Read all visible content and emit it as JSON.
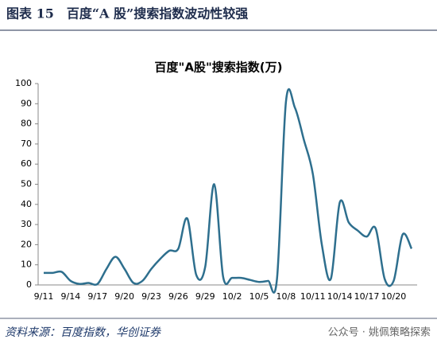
{
  "header": {
    "title": "图表 15　百度“A 股”搜索指数波动性较强"
  },
  "chart_data": {
    "type": "line",
    "title": "百度\"A股\"搜索指数(万)",
    "categories": [
      "9/11",
      null,
      null,
      "9/14",
      null,
      null,
      "9/17",
      null,
      null,
      "9/20",
      null,
      null,
      "9/23",
      null,
      null,
      "9/26",
      null,
      null,
      "9/29",
      null,
      null,
      "10/2",
      null,
      null,
      "10/5",
      null,
      null,
      "10/8",
      null,
      null,
      "10/11",
      null,
      null,
      "10/14",
      null,
      null,
      "10/17",
      null,
      null,
      "10/20",
      null,
      null
    ],
    "series": [
      {
        "color": "#2e6f8e",
        "values": [
          6,
          6,
          6.5,
          2,
          0.5,
          1,
          0.5,
          8,
          14,
          8,
          1,
          2,
          8,
          13,
          17,
          18,
          33,
          5,
          9,
          50,
          4,
          3.5,
          3.5,
          2.5,
          1.5,
          2,
          3,
          91,
          88,
          72,
          55,
          20,
          3,
          41,
          31,
          27,
          24,
          28,
          3,
          2,
          25,
          18
        ]
      }
    ],
    "ylim": [
      0,
      100
    ],
    "yticks": [
      0,
      10,
      20,
      30,
      40,
      50,
      60,
      70,
      80,
      90,
      100
    ]
  },
  "footer": {
    "source": "资料来源：百度指数，华创证券",
    "watermark": "公众号 · 姚佩策略探索"
  }
}
